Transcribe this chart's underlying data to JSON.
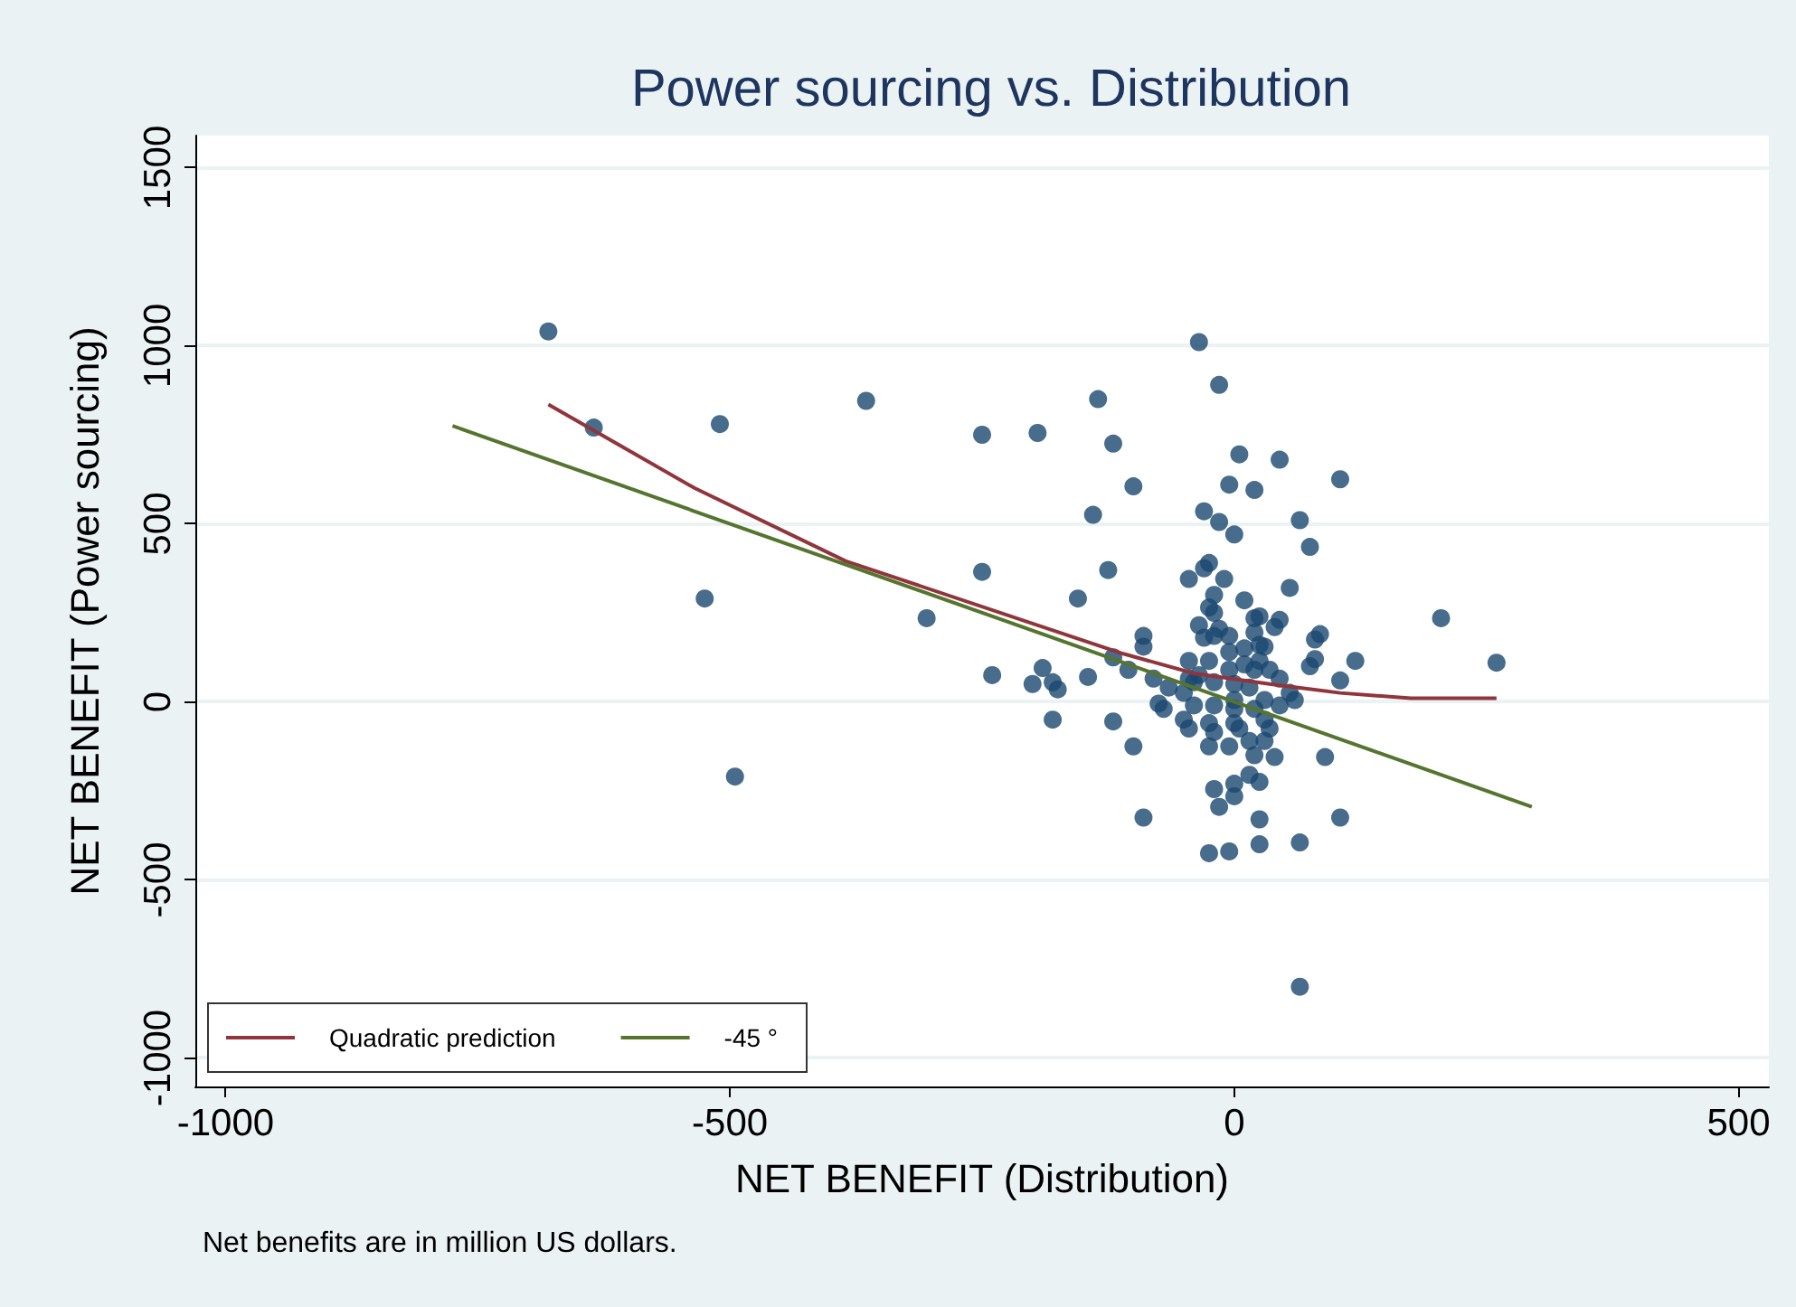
{
  "chart_data": {
    "type": "scatter",
    "title": "Power sourcing vs. Distribution",
    "xlabel": "NET BENEFIT (Distribution)",
    "ylabel": "NET BENEFIT (Power sourcing)",
    "annotations": [
      "Net benefits are in million US dollars."
    ],
    "xlim": [
      -1030,
      530
    ],
    "xticks": [
      -1000,
      -500,
      0,
      500
    ],
    "ylim": [
      -1080,
      1590
    ],
    "yticks": [
      -1000,
      -500,
      0,
      500,
      1000,
      1500
    ],
    "grid": "y",
    "legend": "bottom left",
    "line_style": "solid",
    "series": [
      {
        "marker": "circle",
        "color": "#1a476f",
        "x": [
          -680,
          -635,
          -510,
          -365,
          -250,
          -195,
          -525,
          -495,
          -305,
          -250,
          -240,
          -135,
          -120,
          -100,
          -140,
          -125,
          -155,
          -35,
          -15,
          5,
          45,
          105,
          20,
          -5,
          0,
          -30,
          -15,
          65,
          75,
          55,
          205,
          260,
          120,
          105,
          65,
          105,
          90,
          -25,
          -30,
          -45,
          -10,
          -20,
          10,
          -25,
          -20,
          20,
          25,
          45,
          40,
          -35,
          -30,
          -15,
          -20,
          -5,
          20,
          25,
          -90,
          -90,
          80,
          85,
          -190,
          -120,
          -200,
          -180,
          -175,
          -145,
          -105,
          -80,
          -180,
          -120,
          -100,
          -90,
          -25,
          -5,
          25,
          65,
          25,
          -15,
          0,
          -20,
          0,
          15,
          25,
          75,
          80,
          -45,
          -25,
          -5,
          10,
          25,
          35,
          45,
          55,
          60,
          45,
          -65,
          -75,
          -70,
          -50,
          -40,
          -20,
          0,
          15,
          30,
          -40,
          -20,
          0,
          -50,
          -45,
          -25,
          -20,
          0,
          5,
          30,
          35,
          15,
          30,
          -25,
          -5,
          20,
          40,
          -35,
          -5,
          20,
          30,
          10,
          -45,
          0,
          20
        ],
        "values": [
          1040,
          770,
          780,
          845,
          750,
          755,
          290,
          -210,
          235,
          365,
          75,
          850,
          725,
          605,
          525,
          370,
          290,
          1010,
          890,
          695,
          680,
          625,
          595,
          610,
          470,
          535,
          505,
          510,
          435,
          320,
          235,
          110,
          115,
          60,
          -800,
          -325,
          -155,
          390,
          375,
          345,
          345,
          300,
          285,
          265,
          250,
          235,
          240,
          230,
          210,
          215,
          180,
          205,
          185,
          185,
          195,
          160,
          185,
          155,
          175,
          190,
          95,
          125,
          50,
          55,
          35,
          70,
          90,
          65,
          -50,
          -55,
          -125,
          -325,
          -425,
          -420,
          -400,
          -395,
          -330,
          -295,
          -265,
          -245,
          -230,
          -205,
          -225,
          100,
          120,
          115,
          115,
          140,
          150,
          115,
          90,
          65,
          25,
          5,
          -10,
          40,
          -5,
          -20,
          25,
          55,
          55,
          50,
          40,
          5,
          -10,
          -10,
          -20,
          -50,
          -75,
          -60,
          -85,
          -60,
          -75,
          -50,
          -75,
          -110,
          -110,
          -125,
          -125,
          -150,
          -155,
          75,
          90,
          90,
          155,
          105,
          65,
          5,
          -20
        ]
      },
      {
        "type": "line",
        "marker": "none",
        "name": "Quadratic prediction",
        "color": "#90353b",
        "x": [
          -680,
          -535,
          -385,
          -200,
          -110,
          -40,
          35,
          105,
          175,
          260
        ],
        "values": [
          835,
          600,
          395,
          220,
          135,
          80,
          50,
          25,
          10,
          10
        ]
      },
      {
        "type": "line",
        "marker": "none",
        "name": "-45 °",
        "color": "#55752f",
        "x": [
          -775,
          295
        ],
        "values": [
          775,
          -295
        ]
      }
    ]
  }
}
